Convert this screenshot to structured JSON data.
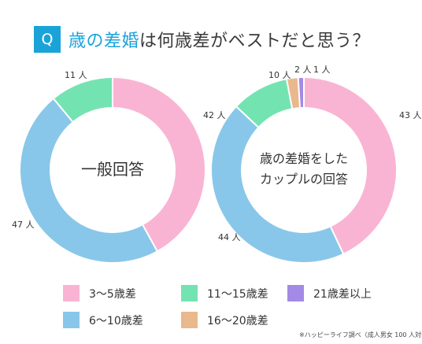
{
  "header": {
    "badge": "Q",
    "title_accent": "歳の差婚",
    "title_rest": "は何歳差がベストだと思う？"
  },
  "colors": {
    "accent": "#1aa3d9",
    "pink": "#f9b4d4",
    "blue": "#88c7e9",
    "green": "#74e3b2",
    "orange": "#eab88d",
    "purple": "#a38ae6"
  },
  "chart_data": [
    {
      "type": "pie",
      "title": "一般回答",
      "unit": "人",
      "categories": [
        "3〜5歳差",
        "6〜10歳差",
        "11〜15歳差"
      ],
      "values": [
        42,
        47,
        11
      ],
      "value_labels": [
        "42 人",
        "47 人",
        "11 人"
      ]
    },
    {
      "type": "pie",
      "title_lines": [
        "歳の差婚をした",
        "カップルの回答"
      ],
      "unit": "人",
      "categories": [
        "3〜5歳差",
        "6〜10歳差",
        "11〜15歳差",
        "16〜20歳差",
        "21歳差以上"
      ],
      "values": [
        43,
        44,
        10,
        2,
        1
      ],
      "value_labels": [
        "43 人",
        "44 人",
        "10 人",
        "2 人",
        "1 人"
      ]
    }
  ],
  "legend": [
    {
      "label": "3〜5歳差",
      "color": "#f9b4d4"
    },
    {
      "label": "11〜15歳差",
      "color": "#74e3b2"
    },
    {
      "label": "21歳差以上",
      "color": "#a38ae6"
    },
    {
      "label": "6〜10歳差",
      "color": "#88c7e9"
    },
    {
      "label": "16〜20歳差",
      "color": "#eab88d"
    }
  ],
  "footnote": "※ハッピーライフ調べ（成人男女 100 人対象）"
}
